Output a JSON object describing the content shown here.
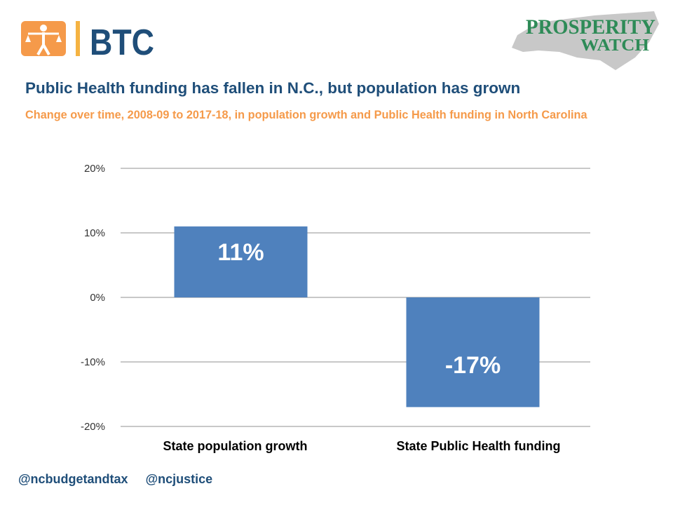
{
  "logos": {
    "left": {
      "text": "BTC",
      "icon": "scales-of-justice-person-icon",
      "icon_color": "#f59a4a",
      "divider_color": "#f5b342",
      "text_color": "#1f4e79"
    },
    "right": {
      "line1": "PROSPERITY",
      "line2": "WATCH",
      "text_color": "#2e8b57",
      "map_color": "#c8c8c8",
      "icon": "north-carolina-map-icon"
    }
  },
  "title": "Public Health funding has fallen in N.C., but population has grown",
  "subtitle": "Change over time, 2008-09 to 2017-18, in population growth and Public Health funding in North Carolina",
  "footer": {
    "handle1": "@ncbudgetandtax",
    "handle2": "@ncjustice"
  },
  "chart_data": {
    "type": "bar",
    "categories": [
      "State population growth",
      "State Public Health funding"
    ],
    "values": [
      11,
      -17
    ],
    "data_labels": [
      "11%",
      "-17%"
    ],
    "yticks": [
      20,
      10,
      0,
      -10,
      -20
    ],
    "ytick_labels": [
      "20%",
      "10%",
      "0%",
      "-10%",
      "-20%"
    ],
    "ylim": [
      -20,
      20
    ],
    "xlabel": "",
    "ylabel": "",
    "grid": true,
    "bar_color": "#4f81bd",
    "gridline_color": "#a6a6a6",
    "data_label_color": "#ffffff"
  }
}
